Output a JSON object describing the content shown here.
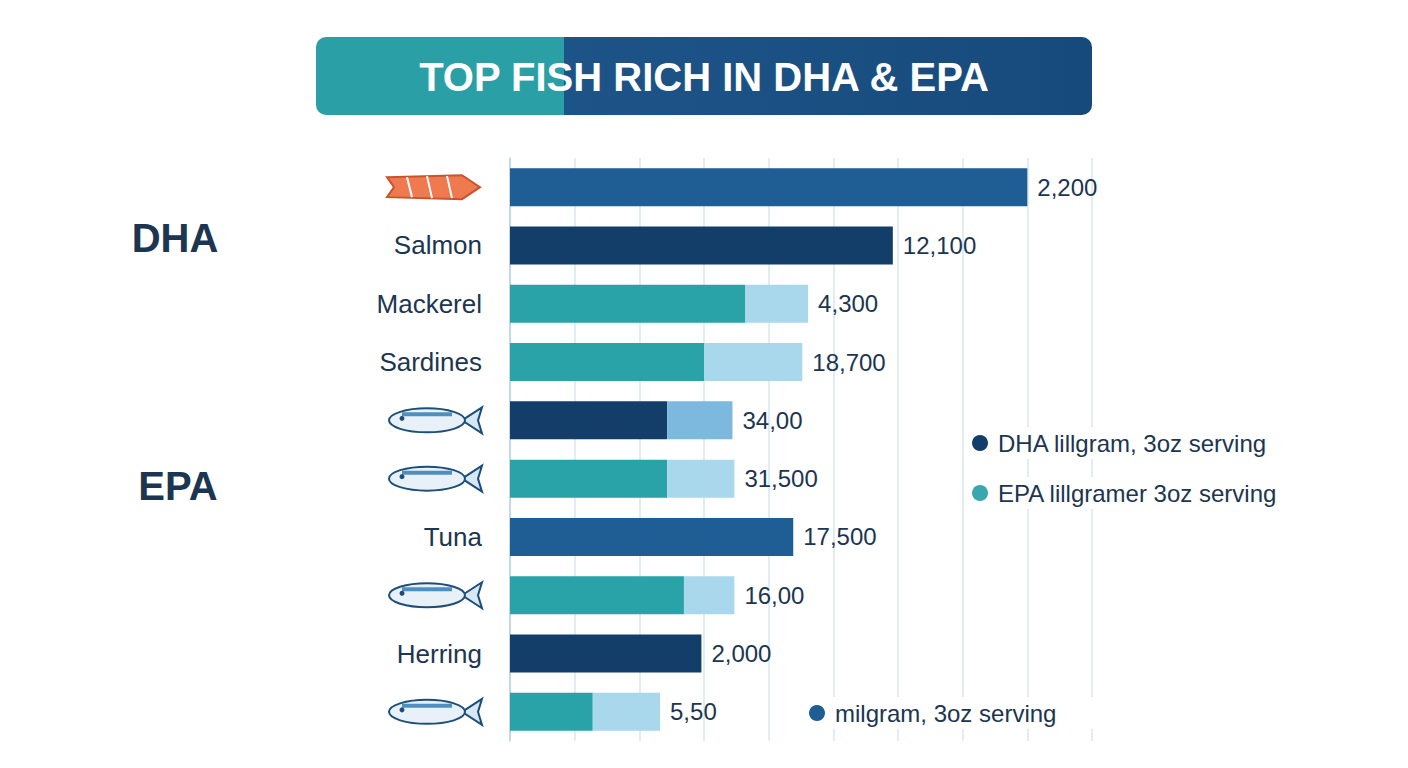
{
  "chart_data": {
    "type": "bar",
    "title": "TOP FISH RICH IN DHA & EPA",
    "orientation": "horizontal",
    "stacked": true,
    "grid": true,
    "tick_labels": "y",
    "categories": [
      null,
      "Salmon",
      "Mackerel",
      "Sardines",
      null,
      null,
      "Tuna",
      null,
      "Herring",
      null
    ],
    "xlim": [
      0,
      4500
    ],
    "xticks": [
      0,
      500,
      1000,
      1500,
      2000,
      2500,
      3000,
      3500,
      4000,
      4500
    ],
    "series": [
      {
        "colors": [
          "#1f5d95",
          "#143e6a",
          "#2aa3a8",
          "#2aa3a8",
          "#143e6a",
          "#2aa3a8",
          "#1f5d95",
          "#2aa3a8",
          "#143e6a",
          "#2aa3a8"
        ],
        "values": [
          4000,
          2960,
          1820,
          1500,
          1215,
          1215,
          2190,
          1345,
          1480,
          640
        ]
      },
      {
        "colors": [
          null,
          null,
          "#a9d8ec",
          "#a9d8ec",
          "#7db9df",
          "#a9d8ec",
          null,
          "#a9d8ec",
          null,
          "#a9d8ec"
        ],
        "values": [
          null,
          null,
          485,
          760,
          505,
          520,
          null,
          390,
          null,
          520
        ]
      }
    ],
    "annotations": {
      "bar_labels": [
        "2,200",
        "12,100",
        "4,300",
        "18,700",
        "34,00",
        "31,500",
        "17,500",
        "16,00",
        "2,000",
        "5,50"
      ],
      "group_labels": [
        "DHA",
        "EPA"
      ],
      "legend_notes": [
        {
          "text": "DHA lillgram, 3oz serving",
          "color": "#143e6a"
        },
        {
          "text": "EPA lillgramer 3oz serving",
          "color": "#3aa6ad"
        },
        {
          "text": "milgram, 3oz serving",
          "color": "#1f5d95"
        }
      ]
    }
  }
}
